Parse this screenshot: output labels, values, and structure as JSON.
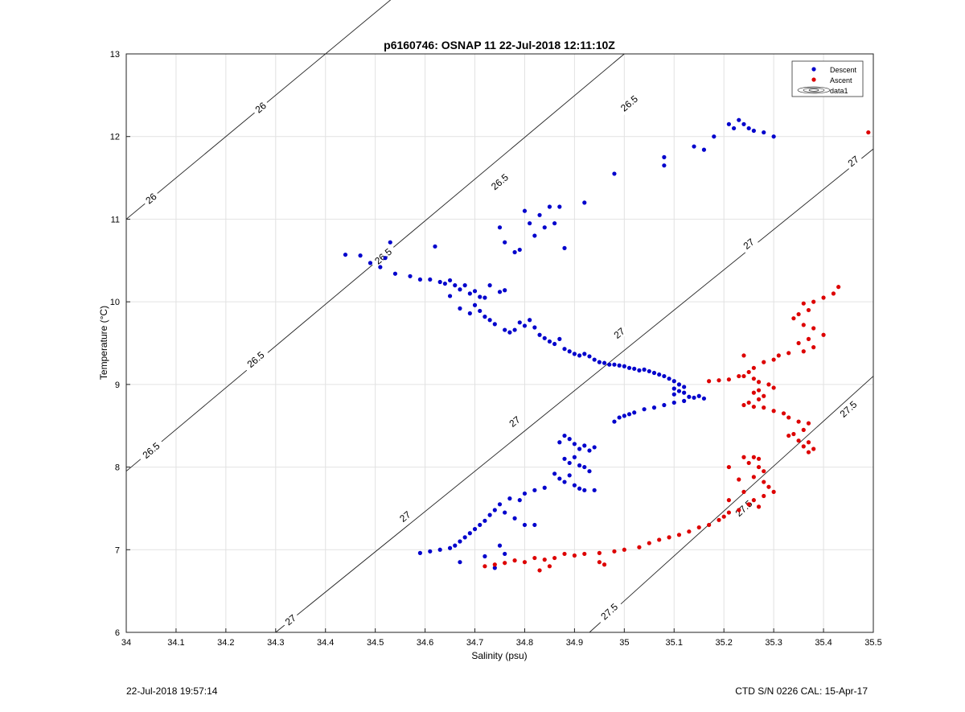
{
  "chart_data": {
    "type": "scatter",
    "title": "p6160746: OSNAP 11 22-Jul-2018 12:11:10Z",
    "xlabel": "Salinity (psu)",
    "ylabel": "Temperature (°C)",
    "xlim": [
      34,
      35.5
    ],
    "ylim": [
      6,
      13
    ],
    "xticks": [
      "34",
      "34.1",
      "34.2",
      "34.3",
      "34.4",
      "34.5",
      "34.6",
      "34.7",
      "34.8",
      "34.9",
      "35",
      "35.1",
      "35.2",
      "35.3",
      "35.4",
      "35.5"
    ],
    "yticks": [
      "6",
      "7",
      "8",
      "9",
      "10",
      "11",
      "12",
      "13"
    ],
    "grid": true,
    "legend_position": "top-right",
    "legend": [
      "Descent",
      "Ascent",
      "data1"
    ],
    "contour_labels": {
      "c26": "26",
      "c265": "26.5",
      "c27": "27",
      "c275": "27.5"
    },
    "series": [
      {
        "name": "Descent",
        "color": "#0000cc",
        "points": [
          [
            34.44,
            10.57
          ],
          [
            34.47,
            10.56
          ],
          [
            34.49,
            10.47
          ],
          [
            34.51,
            10.42
          ],
          [
            34.52,
            10.53
          ],
          [
            34.53,
            10.72
          ],
          [
            34.54,
            10.34
          ],
          [
            34.57,
            10.31
          ],
          [
            34.59,
            10.27
          ],
          [
            34.61,
            10.27
          ],
          [
            34.62,
            10.67
          ],
          [
            34.63,
            10.24
          ],
          [
            34.64,
            10.22
          ],
          [
            34.65,
            10.26
          ],
          [
            34.66,
            10.2
          ],
          [
            34.67,
            10.15
          ],
          [
            34.68,
            10.2
          ],
          [
            34.69,
            10.1
          ],
          [
            34.7,
            10.13
          ],
          [
            34.71,
            10.06
          ],
          [
            34.72,
            10.05
          ],
          [
            34.73,
            10.2
          ],
          [
            34.75,
            10.12
          ],
          [
            34.76,
            10.14
          ],
          [
            34.65,
            10.07
          ],
          [
            34.67,
            9.92
          ],
          [
            34.69,
            9.86
          ],
          [
            34.7,
            9.96
          ],
          [
            34.71,
            9.89
          ],
          [
            34.72,
            9.82
          ],
          [
            34.73,
            9.78
          ],
          [
            34.74,
            9.73
          ],
          [
            34.76,
            9.66
          ],
          [
            34.77,
            9.63
          ],
          [
            34.78,
            9.66
          ],
          [
            34.79,
            9.75
          ],
          [
            34.8,
            9.71
          ],
          [
            34.81,
            9.78
          ],
          [
            34.82,
            9.69
          ],
          [
            34.83,
            9.6
          ],
          [
            34.84,
            9.56
          ],
          [
            34.85,
            9.52
          ],
          [
            34.86,
            9.49
          ],
          [
            34.87,
            9.55
          ],
          [
            34.88,
            9.43
          ],
          [
            34.89,
            9.4
          ],
          [
            34.9,
            9.37
          ],
          [
            34.91,
            9.35
          ],
          [
            34.92,
            9.37
          ],
          [
            34.93,
            9.34
          ],
          [
            34.94,
            9.3
          ],
          [
            34.95,
            9.27
          ],
          [
            34.96,
            9.26
          ],
          [
            34.97,
            9.24
          ],
          [
            34.98,
            9.24
          ],
          [
            34.99,
            9.23
          ],
          [
            35.0,
            9.22
          ],
          [
            35.01,
            9.2
          ],
          [
            35.02,
            9.19
          ],
          [
            35.03,
            9.17
          ],
          [
            35.04,
            9.18
          ],
          [
            35.05,
            9.16
          ],
          [
            35.06,
            9.14
          ],
          [
            35.07,
            9.12
          ],
          [
            35.08,
            9.1
          ],
          [
            35.09,
            9.07
          ],
          [
            35.1,
            9.04
          ],
          [
            35.11,
            9.0
          ],
          [
            35.12,
            8.97
          ],
          [
            35.1,
            8.95
          ],
          [
            35.11,
            8.92
          ],
          [
            35.12,
            8.9
          ],
          [
            35.1,
            8.88
          ],
          [
            35.13,
            8.85
          ],
          [
            35.14,
            8.84
          ],
          [
            35.15,
            8.86
          ],
          [
            35.16,
            8.83
          ],
          [
            35.12,
            8.8
          ],
          [
            35.1,
            8.78
          ],
          [
            35.08,
            8.75
          ],
          [
            35.06,
            8.72
          ],
          [
            35.04,
            8.7
          ],
          [
            35.02,
            8.66
          ],
          [
            35.01,
            8.64
          ],
          [
            35.0,
            8.62
          ],
          [
            34.99,
            8.6
          ],
          [
            34.98,
            8.55
          ],
          [
            34.87,
            8.3
          ],
          [
            34.88,
            8.38
          ],
          [
            34.89,
            8.34
          ],
          [
            34.9,
            8.28
          ],
          [
            34.91,
            8.22
          ],
          [
            34.92,
            8.26
          ],
          [
            34.93,
            8.2
          ],
          [
            34.94,
            8.24
          ],
          [
            34.88,
            8.1
          ],
          [
            34.89,
            8.05
          ],
          [
            34.9,
            8.12
          ],
          [
            34.91,
            8.02
          ],
          [
            34.92,
            8.0
          ],
          [
            34.93,
            7.95
          ],
          [
            34.86,
            7.92
          ],
          [
            34.87,
            7.86
          ],
          [
            34.88,
            7.82
          ],
          [
            34.89,
            7.9
          ],
          [
            34.9,
            7.78
          ],
          [
            34.91,
            7.74
          ],
          [
            34.92,
            7.72
          ],
          [
            34.94,
            7.72
          ],
          [
            34.84,
            7.75
          ],
          [
            34.82,
            7.72
          ],
          [
            34.8,
            7.68
          ],
          [
            34.79,
            7.6
          ],
          [
            34.77,
            7.62
          ],
          [
            34.75,
            7.55
          ],
          [
            34.74,
            7.48
          ],
          [
            34.76,
            7.45
          ],
          [
            34.73,
            7.42
          ],
          [
            34.72,
            7.35
          ],
          [
            34.71,
            7.3
          ],
          [
            34.7,
            7.25
          ],
          [
            34.69,
            7.2
          ],
          [
            34.68,
            7.15
          ],
          [
            34.67,
            7.1
          ],
          [
            34.66,
            7.05
          ],
          [
            34.65,
            7.02
          ],
          [
            34.63,
            7.0
          ],
          [
            34.61,
            6.98
          ],
          [
            34.59,
            6.96
          ],
          [
            34.67,
            6.85
          ],
          [
            34.72,
            6.92
          ],
          [
            34.74,
            6.78
          ],
          [
            34.75,
            7.05
          ],
          [
            34.76,
            6.95
          ],
          [
            34.8,
            7.3
          ],
          [
            34.82,
            7.3
          ],
          [
            34.78,
            7.38
          ],
          [
            34.75,
            10.9
          ],
          [
            34.76,
            10.72
          ],
          [
            34.78,
            10.6
          ],
          [
            34.79,
            10.63
          ],
          [
            34.8,
            11.1
          ],
          [
            34.81,
            10.95
          ],
          [
            34.82,
            10.8
          ],
          [
            34.83,
            11.05
          ],
          [
            34.84,
            10.9
          ],
          [
            34.85,
            11.15
          ],
          [
            34.86,
            10.95
          ],
          [
            34.87,
            11.15
          ],
          [
            34.88,
            10.65
          ],
          [
            34.92,
            11.2
          ],
          [
            34.98,
            11.55
          ],
          [
            35.08,
            11.75
          ],
          [
            35.08,
            11.65
          ],
          [
            35.14,
            11.88
          ],
          [
            35.16,
            11.84
          ],
          [
            35.18,
            12.0
          ],
          [
            35.21,
            12.15
          ],
          [
            35.22,
            12.1
          ],
          [
            35.23,
            12.2
          ],
          [
            35.24,
            12.15
          ],
          [
            35.25,
            12.1
          ],
          [
            35.26,
            12.07
          ],
          [
            35.28,
            12.05
          ],
          [
            35.3,
            12.0
          ]
        ]
      },
      {
        "name": "Ascent",
        "color": "#dd0000",
        "points": [
          [
            35.49,
            12.05
          ],
          [
            35.43,
            10.18
          ],
          [
            35.42,
            10.1
          ],
          [
            35.4,
            10.05
          ],
          [
            35.38,
            10.0
          ],
          [
            35.36,
            9.98
          ],
          [
            35.37,
            9.9
          ],
          [
            35.35,
            9.85
          ],
          [
            35.34,
            9.8
          ],
          [
            35.36,
            9.72
          ],
          [
            35.38,
            9.68
          ],
          [
            35.4,
            9.6
          ],
          [
            35.37,
            9.55
          ],
          [
            35.35,
            9.5
          ],
          [
            35.38,
            9.45
          ],
          [
            35.36,
            9.4
          ],
          [
            35.33,
            9.38
          ],
          [
            35.31,
            9.35
          ],
          [
            35.3,
            9.3
          ],
          [
            35.28,
            9.27
          ],
          [
            35.26,
            9.2
          ],
          [
            35.25,
            9.15
          ],
          [
            35.24,
            9.1
          ],
          [
            35.26,
            9.07
          ],
          [
            35.27,
            9.03
          ],
          [
            35.29,
            9.0
          ],
          [
            35.3,
            8.96
          ],
          [
            35.27,
            8.93
          ],
          [
            35.26,
            8.9
          ],
          [
            35.28,
            8.86
          ],
          [
            35.27,
            8.82
          ],
          [
            35.25,
            8.78
          ],
          [
            35.24,
            8.75
          ],
          [
            35.26,
            8.73
          ],
          [
            35.28,
            8.72
          ],
          [
            35.3,
            8.68
          ],
          [
            35.32,
            8.65
          ],
          [
            35.33,
            8.6
          ],
          [
            35.35,
            8.55
          ],
          [
            35.37,
            8.53
          ],
          [
            35.36,
            8.45
          ],
          [
            35.34,
            8.4
          ],
          [
            35.33,
            8.38
          ],
          [
            35.35,
            8.32
          ],
          [
            35.37,
            8.3
          ],
          [
            35.36,
            8.25
          ],
          [
            35.38,
            8.22
          ],
          [
            35.37,
            8.18
          ],
          [
            35.19,
            9.05
          ],
          [
            35.21,
            9.06
          ],
          [
            35.23,
            9.1
          ],
          [
            35.24,
            9.35
          ],
          [
            35.17,
            9.04
          ],
          [
            35.26,
            8.12
          ],
          [
            35.27,
            8.1
          ],
          [
            35.25,
            8.05
          ],
          [
            35.27,
            8.0
          ],
          [
            35.28,
            7.95
          ],
          [
            35.26,
            7.88
          ],
          [
            35.28,
            7.82
          ],
          [
            35.29,
            7.76
          ],
          [
            35.3,
            7.7
          ],
          [
            35.28,
            7.65
          ],
          [
            35.26,
            7.6
          ],
          [
            35.25,
            7.55
          ],
          [
            35.27,
            7.52
          ],
          [
            35.23,
            7.48
          ],
          [
            35.21,
            7.45
          ],
          [
            35.2,
            7.4
          ],
          [
            35.19,
            7.36
          ],
          [
            35.17,
            7.3
          ],
          [
            35.15,
            7.27
          ],
          [
            35.13,
            7.22
          ],
          [
            35.11,
            7.18
          ],
          [
            35.09,
            7.15
          ],
          [
            35.07,
            7.12
          ],
          [
            35.05,
            7.08
          ],
          [
            35.03,
            7.03
          ],
          [
            35.0,
            7.0
          ],
          [
            34.98,
            6.98
          ],
          [
            34.95,
            6.96
          ],
          [
            34.92,
            6.95
          ],
          [
            34.9,
            6.93
          ],
          [
            34.88,
            6.95
          ],
          [
            34.86,
            6.9
          ],
          [
            34.84,
            6.88
          ],
          [
            34.82,
            6.9
          ],
          [
            34.8,
            6.85
          ],
          [
            34.78,
            6.87
          ],
          [
            34.76,
            6.84
          ],
          [
            34.74,
            6.82
          ],
          [
            34.72,
            6.8
          ],
          [
            34.83,
            6.75
          ],
          [
            34.85,
            6.8
          ],
          [
            34.95,
            6.85
          ],
          [
            34.96,
            6.82
          ],
          [
            35.21,
            8.0
          ],
          [
            35.23,
            7.85
          ],
          [
            35.24,
            7.7
          ],
          [
            35.21,
            7.6
          ],
          [
            35.24,
            8.12
          ]
        ]
      }
    ]
  },
  "footer": {
    "timestamp": "22-Jul-2018 19:57:14",
    "instrument": "CTD S/N 0226  CAL: 15-Apr-17"
  }
}
